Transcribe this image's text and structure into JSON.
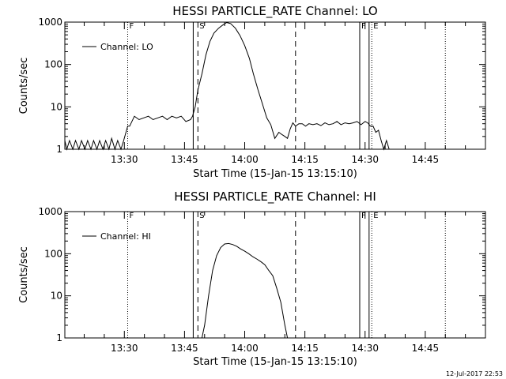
{
  "chart_data": [
    {
      "type": "line",
      "title": "HESSI PARTICLE_RATE Channel: LO",
      "xlabel": "Start Time (15-Jan-15 13:15:10)",
      "ylabel": "Counts/sec",
      "y_scale": "log",
      "xlim": [
        "13:15:10",
        "15:00:00"
      ],
      "ylim": [
        1,
        1000
      ],
      "x_ticks": [
        "13:30",
        "13:45",
        "14:00",
        "14:15",
        "14:30",
        "14:45"
      ],
      "y_ticks": [
        "1",
        "10",
        "100",
        "1000"
      ],
      "legend": {
        "position": "top-left",
        "entries": [
          "Channel: LO"
        ]
      },
      "series": [
        {
          "name": "Channel: LO",
          "x": [
            "13:15:10",
            "13:15:40",
            "13:16:20",
            "13:17:10",
            "13:17:50",
            "13:18:40",
            "13:19:20",
            "13:20:10",
            "13:20:50",
            "13:21:40",
            "13:22:20",
            "13:23:10",
            "13:23:50",
            "13:24:40",
            "13:25:20",
            "13:26:10",
            "13:26:50",
            "13:27:40",
            "13:28:20",
            "13:29:10",
            "13:29:50",
            "13:30:50",
            "13:31:20",
            "13:32:30",
            "13:33:40",
            "13:34:50",
            "13:36:00",
            "13:37:10",
            "13:38:20",
            "13:39:30",
            "13:40:40",
            "13:41:50",
            "13:43:00",
            "13:44:10",
            "13:45:20",
            "13:46:30",
            "13:47:00",
            "13:47:40",
            "13:48:20",
            "13:49:20",
            "13:50:20",
            "13:51:20",
            "13:52:20",
            "13:53:30",
            "13:54:30",
            "13:55:30",
            "13:56:30",
            "13:57:40",
            "13:58:50",
            "14:00:00",
            "14:01:10",
            "14:02:10",
            "14:03:20",
            "14:04:30",
            "14:05:30",
            "14:06:30",
            "14:07:30",
            "14:08:30",
            "14:09:20",
            "14:10:00",
            "14:10:40",
            "14:11:20",
            "14:12:00",
            "14:12:40",
            "14:13:30",
            "14:14:20",
            "14:15:10",
            "14:16:00",
            "14:17:00",
            "14:18:00",
            "14:19:00",
            "14:20:00",
            "14:21:00",
            "14:22:00",
            "14:23:00",
            "14:24:00",
            "14:25:00",
            "14:26:00",
            "14:27:00",
            "14:28:00",
            "14:29:00",
            "14:30:00",
            "14:30:40",
            "14:31:20",
            "14:32:00",
            "14:32:40",
            "14:33:20",
            "14:34:00",
            "14:34:40",
            "14:35:20",
            "14:36:00"
          ],
          "values": [
            1.6,
            1,
            1.6,
            1,
            1.6,
            1,
            1.6,
            1,
            1.6,
            1,
            1.6,
            1,
            1.6,
            1,
            1.6,
            1,
            1.8,
            1,
            1.6,
            1,
            1.6,
            3.5,
            3.5,
            6,
            5,
            5.5,
            6,
            5,
            5.5,
            6,
            5,
            6,
            5.5,
            6,
            4.5,
            5,
            6,
            10,
            25,
            60,
            170,
            350,
            550,
            720,
            850,
            980,
            920,
            720,
            480,
            280,
            140,
            60,
            25,
            11,
            5.5,
            3.8,
            1.8,
            2.5,
            2.2,
            2,
            1.8,
            3,
            4.2,
            3.5,
            4,
            4,
            3.5,
            4,
            3.8,
            4,
            3.6,
            4.2,
            3.8,
            4,
            4.5,
            3.8,
            4.2,
            4,
            4.2,
            4.5,
            3.8,
            4.5,
            4.2,
            3.5,
            3.5,
            2.5,
            2.8,
            1.6,
            1,
            1.6,
            1
          ]
        }
      ],
      "annotations": {
        "solid_lines": [
          "13:47:10",
          "14:28:40",
          "14:31:00"
        ],
        "dashed_lines": [
          "13:48:20",
          "14:12:40"
        ],
        "dotted_lines": [
          "13:30:50",
          "14:31:40",
          "14:50:00"
        ],
        "labels": [
          {
            "text": "F",
            "at": "13:30:50"
          },
          {
            "text": "S",
            "at": "13:48:20"
          },
          {
            "text": "F",
            "at": "14:28:40"
          },
          {
            "text": "E",
            "at": "14:31:40"
          }
        ]
      }
    },
    {
      "type": "line",
      "title": "HESSI PARTICLE_RATE Channel: HI",
      "xlabel": "Start Time (15-Jan-15 13:15:10)",
      "ylabel": "Counts/sec",
      "y_scale": "log",
      "xlim": [
        "13:15:10",
        "15:00:00"
      ],
      "ylim": [
        1,
        1000
      ],
      "x_ticks": [
        "13:30",
        "13:45",
        "14:00",
        "14:15",
        "14:30",
        "14:45"
      ],
      "y_ticks": [
        "1",
        "10",
        "100",
        "1000"
      ],
      "legend": {
        "position": "top-left",
        "entries": [
          "Channel: HI"
        ]
      },
      "series": [
        {
          "name": "Channel: HI",
          "x": [
            "13:49:20",
            "13:50:00",
            "13:51:00",
            "13:52:00",
            "13:53:00",
            "13:54:00",
            "13:55:00",
            "13:56:00",
            "13:57:00",
            "13:58:00",
            "13:59:00",
            "14:00:00",
            "14:01:00",
            "14:02:00",
            "14:03:00",
            "14:04:00",
            "14:05:00",
            "14:06:00",
            "14:07:00",
            "14:08:00",
            "14:09:00",
            "14:10:00",
            "14:10:40"
          ],
          "values": [
            1,
            2,
            10,
            40,
            90,
            140,
            170,
            175,
            165,
            150,
            130,
            115,
            100,
            85,
            75,
            65,
            55,
            40,
            30,
            15,
            7,
            2,
            1
          ]
        }
      ],
      "annotations": {
        "solid_lines": [
          "13:47:10",
          "14:28:40",
          "14:31:00"
        ],
        "dashed_lines": [
          "13:48:20",
          "14:12:40"
        ],
        "dotted_lines": [
          "13:30:50",
          "14:31:40",
          "14:50:00"
        ],
        "labels": [
          {
            "text": "F",
            "at": "13:30:50"
          },
          {
            "text": "S",
            "at": "13:48:20"
          },
          {
            "text": "F",
            "at": "14:28:40"
          },
          {
            "text": "E",
            "at": "14:31:40"
          }
        ]
      }
    }
  ],
  "footer": {
    "timestamp": "12-Jul-2017 22:53"
  }
}
